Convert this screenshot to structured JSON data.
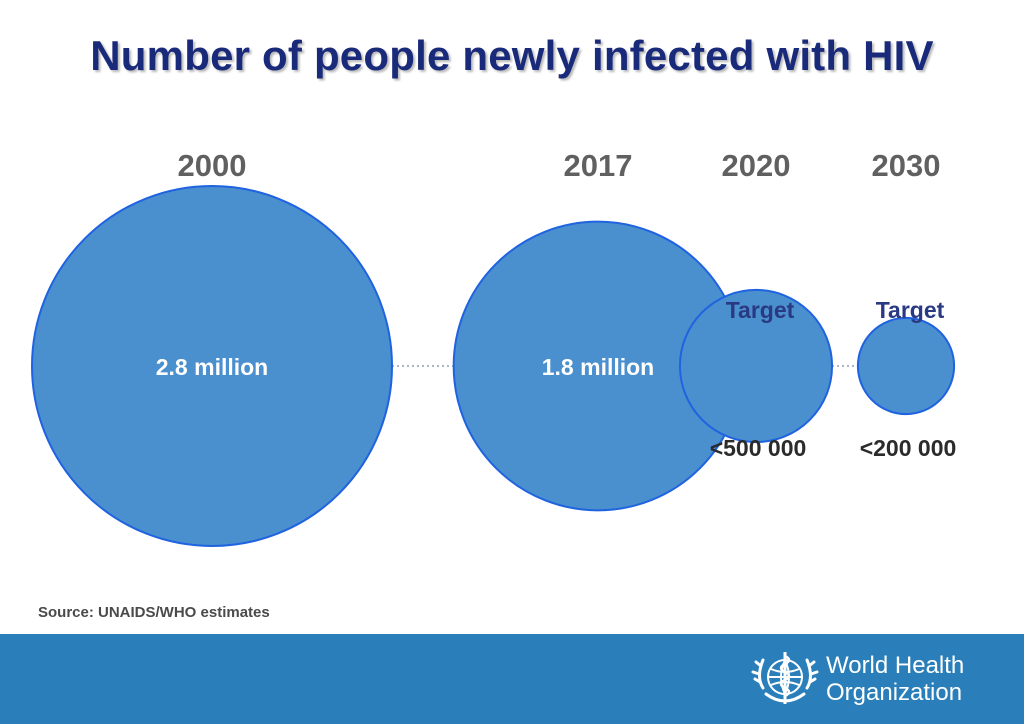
{
  "title": "Number of people newly infected with HIV",
  "source": "Source: UNAIDS/WHO estimates",
  "colors": {
    "title": "#1a2a7a",
    "bubble_fill": "#4a8fce",
    "bubble_stroke": "#1f63e0",
    "year_label": "#606060",
    "target_label": "#2a3a82",
    "footer_band": "#2a7fba"
  },
  "organization": {
    "line1": "World Health",
    "line2": "Organization",
    "emblem_icon": "who-emblem-icon"
  },
  "chart_data": {
    "type": "bubble",
    "unit": "people newly infected",
    "points": [
      {
        "year": "2000",
        "value": 2800000,
        "label": "2.8 million",
        "target_label": "",
        "threshold_label": ""
      },
      {
        "year": "2017",
        "value": 1800000,
        "label": "1.8 million",
        "target_label": "",
        "threshold_label": ""
      },
      {
        "year": "2020",
        "value": 500000,
        "label": "",
        "target_label": "Target",
        "threshold_label": "<500 000"
      },
      {
        "year": "2030",
        "value": 200000,
        "label": "",
        "target_label": "Target",
        "threshold_label": "<200 000"
      }
    ]
  }
}
